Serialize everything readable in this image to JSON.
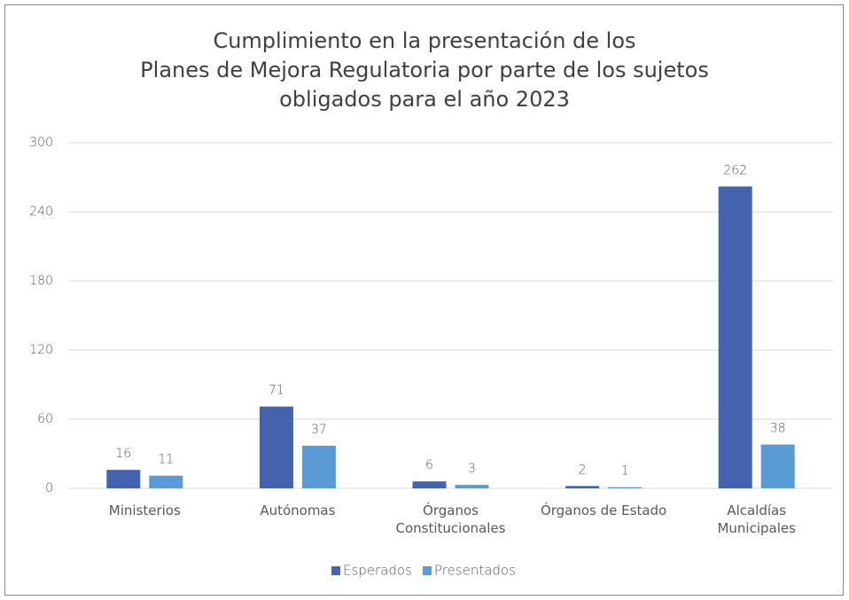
{
  "chart_data": {
    "type": "bar",
    "title": "Cumplimiento en la presentación de los\nPlanes de Mejora Regulatoria por parte de los sujetos\nobligados para el año 2023",
    "categories": [
      "Ministerios",
      "Autónomas",
      "Órganos\nConstitucionales",
      "Órganos de Estado",
      "Alcaldías\nMunicipales"
    ],
    "series": [
      {
        "name": "Esperados",
        "color": "#4463ae",
        "values": [
          16,
          71,
          6,
          2,
          262
        ]
      },
      {
        "name": "Presentados",
        "color": "#5b9bd5",
        "values": [
          11,
          37,
          3,
          1,
          38
        ]
      }
    ],
    "ylim": [
      0,
      300
    ],
    "yticks": [
      0,
      60,
      120,
      180,
      240,
      300
    ],
    "grid": true,
    "legend": "bottom"
  }
}
